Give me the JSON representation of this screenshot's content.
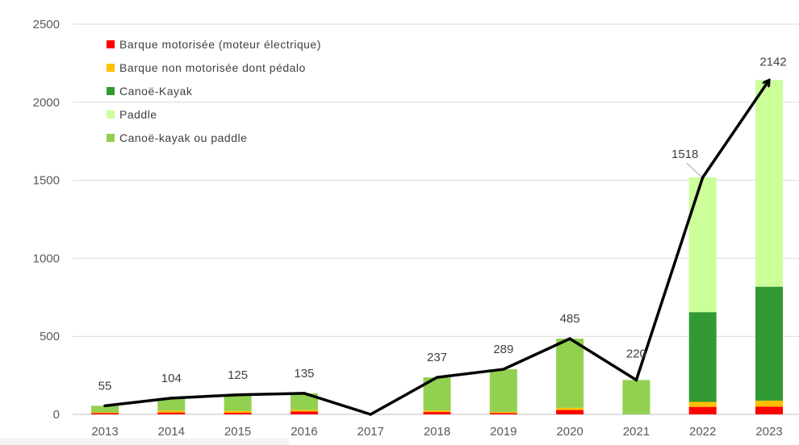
{
  "chart_data": {
    "type": "bar",
    "stacked": true,
    "categories": [
      "2013",
      "2014",
      "2015",
      "2016",
      "2017",
      "2018",
      "2019",
      "2020",
      "2021",
      "2022",
      "2023"
    ],
    "ylim": [
      0,
      2500
    ],
    "yticks": [
      0,
      500,
      1000,
      1500,
      2000,
      2500
    ],
    "grid": true,
    "legend_position": "top-left",
    "series": [
      {
        "name": "Barque motorisée (moteur électrique)",
        "color": "#ff0000",
        "values": [
          8,
          12,
          10,
          18,
          0,
          15,
          8,
          28,
          0,
          48,
          50
        ]
      },
      {
        "name": "Barque non motorisée dont pédalo",
        "color": "#ffc000",
        "values": [
          5,
          12,
          12,
          10,
          0,
          10,
          8,
          14,
          0,
          32,
          38
        ]
      },
      {
        "name": "Canoë-Kayak",
        "color": "#339933",
        "values": [
          0,
          0,
          0,
          0,
          0,
          0,
          0,
          0,
          0,
          575,
          730
        ]
      },
      {
        "name": "Paddle",
        "color": "#ccff99",
        "values": [
          0,
          0,
          0,
          0,
          0,
          0,
          0,
          0,
          0,
          863,
          1324
        ]
      },
      {
        "name": "Canoë-kayak ou paddle",
        "color": "#92d050",
        "values": [
          42,
          80,
          103,
          107,
          0,
          212,
          273,
          443,
          220,
          0,
          0
        ]
      }
    ],
    "totals": {
      "name": "Total",
      "values": [
        55,
        104,
        125,
        135,
        0,
        237,
        289,
        485,
        220,
        1518,
        2142
      ],
      "labels": [
        "55",
        "104",
        "125",
        "135",
        "",
        "237",
        "289",
        "485",
        "220",
        "1518",
        "2142"
      ],
      "line_color": "#000000"
    }
  },
  "legend": {
    "items": [
      {
        "label": "Barque motorisée (moteur électrique)",
        "color": "#ff0000"
      },
      {
        "label": "Barque non motorisée dont pédalo",
        "color": "#ffc000"
      },
      {
        "label": "Canoë-Kayak",
        "color": "#339933"
      },
      {
        "label": "Paddle",
        "color": "#ccff99"
      },
      {
        "label": "Canoë-kayak ou paddle",
        "color": "#92d050"
      }
    ]
  }
}
